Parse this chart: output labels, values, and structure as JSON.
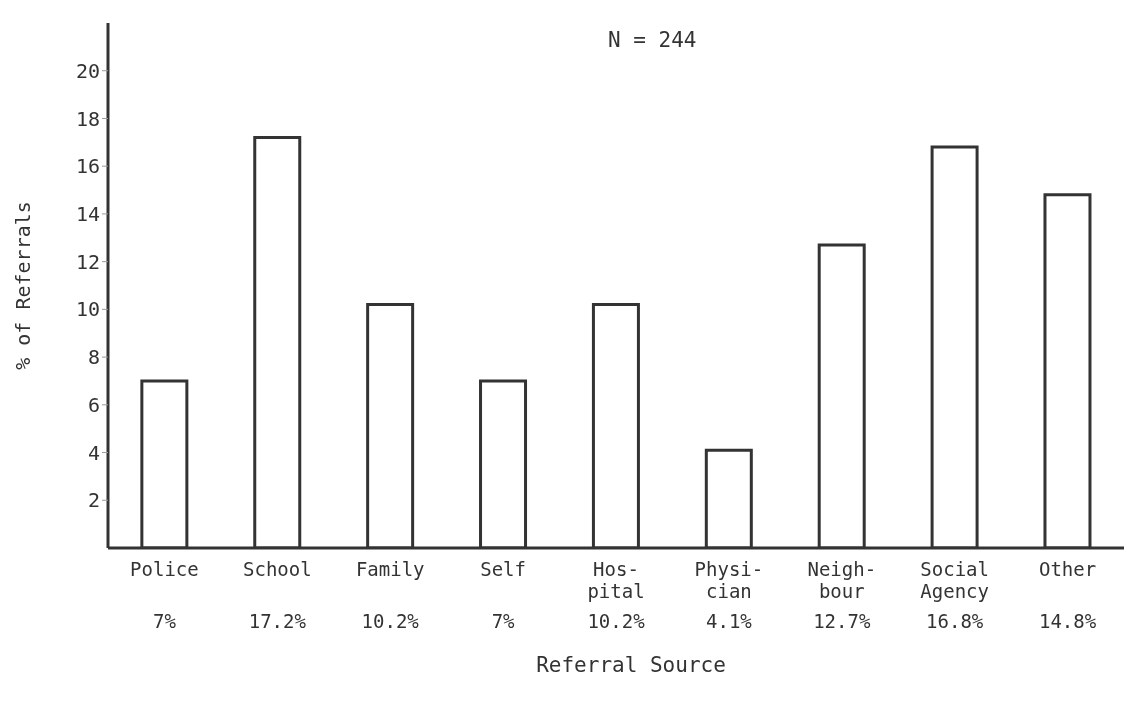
{
  "chart_data": {
    "type": "bar",
    "xlabel": "Referral Source",
    "ylabel": "% of Referrals",
    "annotations": [
      "N = 244"
    ],
    "categories": [
      "Police",
      "School",
      "Family",
      "Self",
      "Hos-\npital",
      "Physi-\ncian",
      "Neigh-\nbour",
      "Social\nAgency",
      "Other"
    ],
    "values": [
      7,
      17.2,
      10.2,
      7,
      10.2,
      4.1,
      12.7,
      16.8,
      14.8
    ],
    "value_labels": [
      "7%",
      "17.2%",
      "10.2%",
      "7%",
      "10.2%",
      "4.1%",
      "12.7%",
      "16.8%",
      "14.8%"
    ],
    "color": "#ffffff",
    "ylim": [
      0,
      22
    ],
    "yticks": [
      2,
      4,
      6,
      8,
      10,
      12,
      14,
      16,
      18,
      20
    ],
    "grid": false
  }
}
